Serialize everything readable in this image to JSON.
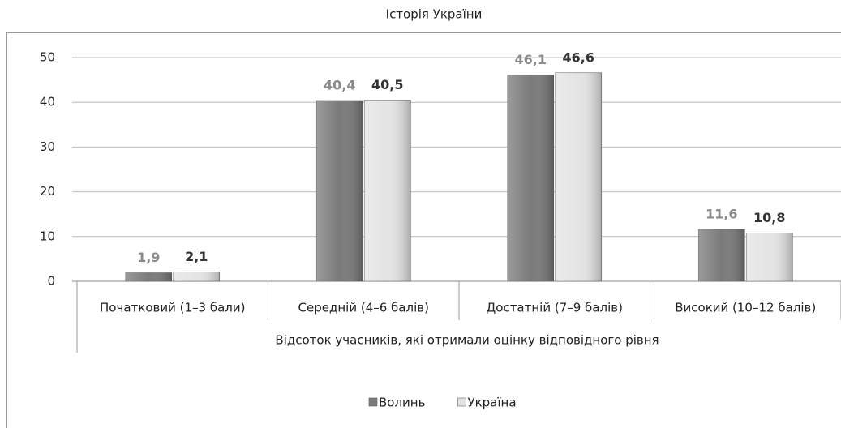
{
  "chart_data": {
    "type": "bar",
    "title": "Історія України",
    "categories": [
      "Початковий (1–3 бали)",
      "Середній (4–6 балів)",
      "Достатній (7–9 балів)",
      "Високий (10–12 балів)"
    ],
    "x_label": "Відсоток учасників, які отримали оцінку відповідного рівня",
    "series": [
      {
        "name": "Волинь",
        "color": "#7a7a7a",
        "label_color": "#8a8a8a",
        "values": [
          1.9,
          40.4,
          46.1,
          11.6
        ],
        "value_labels": [
          "1,9",
          "40,4",
          "46,1",
          "11,6"
        ]
      },
      {
        "name": "Україна",
        "color": "#e4e4e4",
        "label_color": "#333333",
        "values": [
          2.1,
          40.5,
          46.6,
          10.8
        ],
        "value_labels": [
          "2,1",
          "40,5",
          "46,6",
          "10,8"
        ]
      }
    ],
    "ylim": [
      0,
      50
    ],
    "yticks": [
      0,
      10,
      20,
      30,
      40,
      50
    ],
    "grid": true,
    "legend": "bottom"
  }
}
